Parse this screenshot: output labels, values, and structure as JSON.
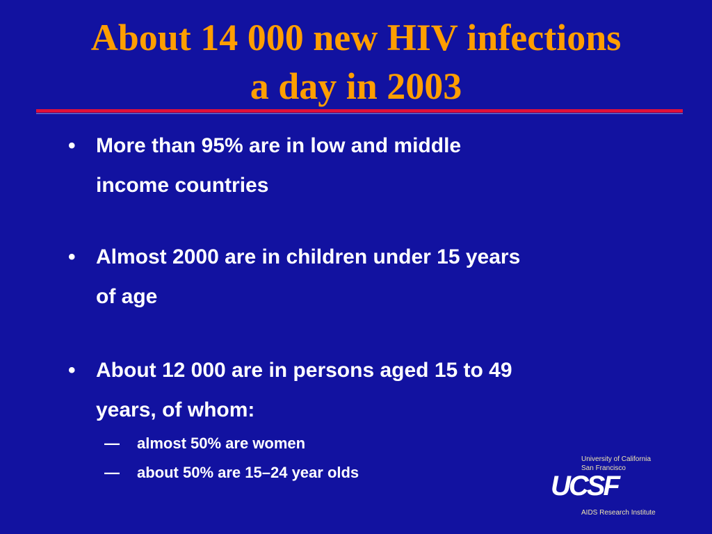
{
  "title": {
    "lines": [
      "About 14 000 new HIV infections",
      "a day in 2003"
    ]
  },
  "bullets": [
    {
      "lines": [
        "More than 95% are in low and middle",
        "income countries"
      ]
    },
    {
      "lines": [
        "Almost 2000 are in children under 15 years",
        "of age"
      ]
    },
    {
      "lines": [
        "About 12 000 are in persons aged 15 to 49",
        "years, of whom:"
      ],
      "sub_bullets": [
        "almost 50% are women",
        "about 50% are 15–24 year olds"
      ]
    }
  ],
  "logo": {
    "line1": "University of California",
    "line2": "San Francisco",
    "mark": "UCSF",
    "line3": "AIDS Research Institute"
  }
}
